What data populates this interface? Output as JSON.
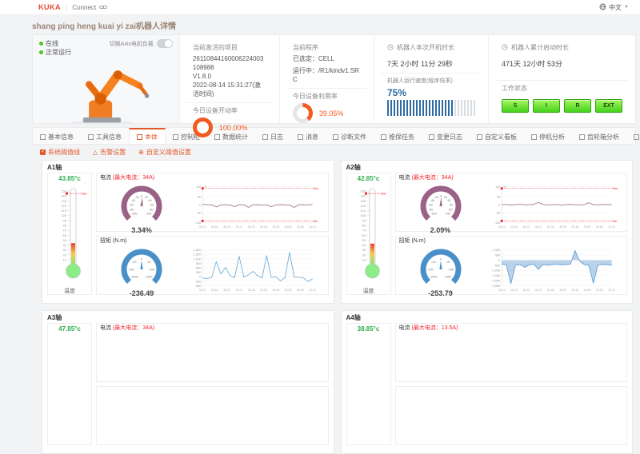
{
  "colors": {
    "accent": "#e4592a",
    "green": "#52c41a",
    "blue": "#2e6da4",
    "purple": "#9b6287",
    "torque_blue": "#4a90c8",
    "red": "#f5222d",
    "donut": "#f25a1f"
  },
  "topbar": {
    "brand": "KUKA",
    "product": "Connect",
    "lang": "中文"
  },
  "page_title": "shang ping heng kuai yi zai机器人详情",
  "header": {
    "statuses": [
      "在线",
      "正常运行"
    ],
    "toggle_label": "切换Axis电机负载",
    "project": {
      "title": "当前激活的项目",
      "id": "26110844160006224003108988",
      "version": "V1.8.0",
      "activated": "2022-08-14 15:31:27(激活时间)"
    },
    "program": {
      "title": "当前程序",
      "selected": "已选定：CELL",
      "running": "运行中：/R1/kindv1.SRC"
    },
    "uptime": {
      "title": "机器人本次开机时长",
      "value": "7天 2小时 11分 29秒"
    },
    "total_uptime": {
      "title": "机器人累计启动时长",
      "value": "471天 12小时 53分"
    },
    "start_rate": {
      "title": "今日设备开动率",
      "display": "100.00%",
      "percent": 100
    },
    "util_rate": {
      "title": "今日设备利用率",
      "display": "39.05%",
      "percent": 39.05
    },
    "speed": {
      "title": "机器人运行速度(程序倍率)",
      "display": "75%",
      "percent": 75
    },
    "work_status": {
      "title": "工作状态",
      "buttons": [
        "S",
        "I",
        "R",
        "EXT"
      ]
    }
  },
  "tabs": {
    "items": [
      {
        "label": "基本信息"
      },
      {
        "label": "工具信息"
      },
      {
        "label": "本体",
        "active": true
      },
      {
        "label": "控制柜"
      },
      {
        "label": "数据统计"
      },
      {
        "label": "日志"
      },
      {
        "label": "消息"
      },
      {
        "label": "诊断文件"
      },
      {
        "label": "维保任务"
      },
      {
        "label": "变更日志"
      },
      {
        "label": "自定义看板"
      },
      {
        "label": "停机分析"
      },
      {
        "label": "齿轮箱分析"
      },
      {
        "label": "轴管理"
      }
    ]
  },
  "chart_options": [
    {
      "label": "系统阈值线",
      "icon": "checkbox"
    },
    {
      "label": "告警设置",
      "icon": "bell"
    },
    {
      "label": "自定义阈值设置",
      "icon": "plus"
    }
  ],
  "axes": [
    {
      "name": "A1轴",
      "thermometer": {
        "display": "43.85°c",
        "value": 43.85,
        "scale_top": 150,
        "scale_bottom": 10,
        "step": 10,
        "max_marker": 145,
        "max_label": "Max",
        "label": "温度"
      },
      "current": {
        "title": "电流",
        "max_label": "(最大电流：34A)",
        "chart": "a1_current",
        "gauge": {
          "ticks": [
            "-100",
            "-80",
            "-60",
            "-40",
            "-20",
            "0",
            "20",
            "40",
            "60",
            "80",
            "100"
          ],
          "range": [
            -100,
            100
          ],
          "value": 3.34,
          "display": "3.34%",
          "color": "#9b6287"
        }
      },
      "torque": {
        "title": "扭矩 (N.m)",
        "chart": "a1_torque",
        "gauge": {
          "ticks": [
            "-100K",
            "-10K",
            "-1K",
            "0",
            "1K",
            "10K",
            "100K"
          ],
          "range": [
            -100000,
            100000
          ],
          "value": -236.49,
          "display": "-236.49",
          "color": "#4a90c8"
        }
      }
    },
    {
      "name": "A2轴",
      "thermometer": {
        "display": "42.85°c",
        "value": 42.85,
        "scale_top": 150,
        "scale_bottom": 10,
        "step": 10,
        "max_marker": 145,
        "max_label": "Max",
        "label": "温度"
      },
      "current": {
        "title": "电流",
        "max_label": "(最大电流：34A)",
        "chart": "a2_current",
        "gauge": {
          "ticks": [
            "-100",
            "-80",
            "-60",
            "-40",
            "-20",
            "0",
            "20",
            "40",
            "60",
            "80",
            "100"
          ],
          "range": [
            -100,
            100
          ],
          "value": 2.09,
          "display": "2.09%",
          "color": "#9b6287"
        }
      },
      "torque": {
        "title": "扭矩 (N.m)",
        "chart": "a2_torque",
        "gauge": {
          "ticks": [
            "-100K",
            "-10K",
            "-1K",
            "0",
            "1K",
            "10K",
            "100K"
          ],
          "range": [
            -100000,
            100000
          ],
          "value": -253.79,
          "display": "-253.79",
          "color": "#4a90c8"
        }
      }
    },
    {
      "name": "A3轴",
      "thermometer": {
        "display": "47.85°c"
      },
      "current": {
        "title": "电流",
        "max_label": "(最大电流：34A)"
      }
    },
    {
      "name": "A4轴",
      "thermometer": {
        "display": "38.85°c"
      },
      "current": {
        "title": "电流",
        "max_label": "(最大电流：13.5A)"
      }
    }
  ],
  "chart_data": [
    {
      "id": "a1_current",
      "type": "line",
      "color": "#a2738f",
      "unit": "%",
      "ylim": [
        -110,
        110
      ],
      "yticks": [
        110,
        50,
        0,
        -50,
        -110
      ],
      "thresholds": [
        {
          "value": 100,
          "label": "Max"
        },
        {
          "value": -100,
          "label": "Min"
        }
      ],
      "x_labels": [
        "30:10",
        "30:16",
        "30:23",
        "30:27",
        "30:33",
        "30:39",
        "30:45",
        "30:50",
        "30:55",
        "31:01"
      ],
      "values": [
        2,
        0,
        -1,
        -14,
        -2,
        0,
        -3,
        -12,
        0,
        -1,
        -16,
        -2,
        0,
        -2,
        -1,
        -13,
        -2,
        0,
        -1,
        -2,
        -17,
        -1,
        0,
        -2,
        2
      ]
    },
    {
      "id": "a1_torque",
      "type": "line",
      "color": "#6aaad6",
      "ylim": [
        -600,
        1800
      ],
      "yticks": [
        1800,
        1500,
        1200,
        900,
        600,
        300,
        0,
        -300,
        -600
      ],
      "x_labels": [
        "30:10",
        "30:16",
        "30:23",
        "30:27",
        "30:33",
        "30:39",
        "30:45",
        "30:50",
        "30:55",
        "31:01"
      ],
      "values": [
        -80,
        -120,
        -40,
        1020,
        180,
        620,
        90,
        -60,
        1380,
        -20,
        130,
        360,
        80,
        -80,
        1420,
        -40,
        -10,
        -280,
        -60,
        1640,
        -20,
        -40,
        -80,
        -320,
        -140
      ]
    },
    {
      "id": "a2_current",
      "type": "line",
      "color": "#a2738f",
      "unit": "%",
      "ylim": [
        -110,
        110
      ],
      "yticks": [
        110,
        50,
        0,
        -50,
        -110
      ],
      "thresholds": [
        {
          "value": 100,
          "label": "Max"
        },
        {
          "value": -100,
          "label": "Min"
        }
      ],
      "x_labels": [
        "30:10",
        "30:16",
        "30:23",
        "30:27",
        "30:33",
        "30:39",
        "30:45",
        "30:50",
        "30:55",
        "31:01"
      ],
      "values": [
        0,
        1,
        -2,
        0,
        3,
        -1,
        0,
        2,
        14,
        1,
        -2,
        0,
        1,
        -3,
        0,
        2,
        0,
        -2,
        1,
        12,
        0,
        -1,
        2,
        0,
        1
      ]
    },
    {
      "id": "a2_torque",
      "type": "area",
      "color": "#5b9bd5",
      "fill": "rgba(130,175,215,0.55)",
      "ylim": [
        -2500,
        1000
      ],
      "yticks": [
        1000,
        500,
        0,
        -500,
        -1000,
        -1500,
        -2000,
        -2500
      ],
      "x_labels": [
        "30:10",
        "30:16",
        "30:23",
        "30:27",
        "30:33",
        "30:39",
        "30:45",
        "30:50",
        "30:55",
        "31:01"
      ],
      "values": [
        -380,
        -450,
        -2300,
        -500,
        -420,
        -700,
        -460,
        -400,
        -900,
        -420,
        -500,
        -440,
        -380,
        -460,
        -420,
        -380,
        950,
        -100,
        -420,
        -520,
        -2250,
        -470,
        -420,
        -440,
        -500
      ]
    }
  ]
}
